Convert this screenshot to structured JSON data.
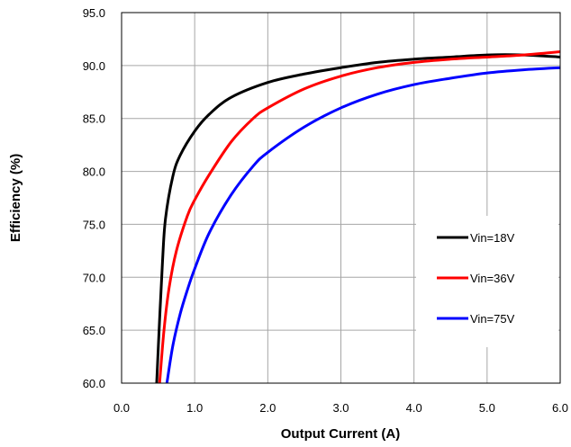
{
  "chart_data": {
    "type": "line",
    "xlabel": "Output Current (A)",
    "ylabel": "Efficiency (%)",
    "xlim": [
      0,
      6
    ],
    "ylim": [
      60,
      95
    ],
    "xticks": [
      "0.0",
      "1.0",
      "2.0",
      "3.0",
      "4.0",
      "5.0",
      "6.0"
    ],
    "yticks": [
      "60.0",
      "65.0",
      "70.0",
      "75.0",
      "80.0",
      "85.0",
      "90.0",
      "95.0"
    ],
    "grid": true,
    "legend_position": "lower-right",
    "series": [
      {
        "name": "Vin=18V",
        "color": "#000000",
        "x": [
          0.48,
          0.52,
          0.56,
          0.6,
          0.7,
          0.8,
          1.0,
          1.2,
          1.5,
          2.0,
          2.5,
          3.0,
          3.5,
          4.0,
          4.5,
          5.0,
          5.5,
          6.0
        ],
        "y": [
          60.0,
          66.0,
          71.5,
          75.5,
          79.5,
          81.5,
          83.8,
          85.4,
          87.0,
          88.4,
          89.2,
          89.8,
          90.3,
          90.6,
          90.8,
          91.0,
          91.0,
          90.8
        ]
      },
      {
        "name": "Vin=36V",
        "color": "#ff0000",
        "x": [
          0.52,
          0.58,
          0.65,
          0.75,
          0.9,
          1.0,
          1.2,
          1.5,
          1.8,
          2.0,
          2.5,
          3.0,
          3.5,
          4.0,
          4.5,
          5.0,
          5.5,
          6.0
        ],
        "y": [
          60.0,
          65.0,
          69.0,
          72.5,
          75.8,
          77.3,
          79.7,
          82.8,
          85.0,
          86.0,
          87.8,
          89.0,
          89.8,
          90.3,
          90.6,
          90.8,
          91.0,
          91.3
        ]
      },
      {
        "name": "Vin=75V",
        "color": "#0000ff",
        "x": [
          0.62,
          0.7,
          0.8,
          0.9,
          1.0,
          1.2,
          1.5,
          1.8,
          2.0,
          2.5,
          3.0,
          3.5,
          4.0,
          4.5,
          5.0,
          5.5,
          6.0
        ],
        "y": [
          60.0,
          63.5,
          66.5,
          68.8,
          70.8,
          74.2,
          77.8,
          80.5,
          81.8,
          84.2,
          86.0,
          87.3,
          88.2,
          88.8,
          89.3,
          89.6,
          89.8
        ]
      }
    ]
  }
}
